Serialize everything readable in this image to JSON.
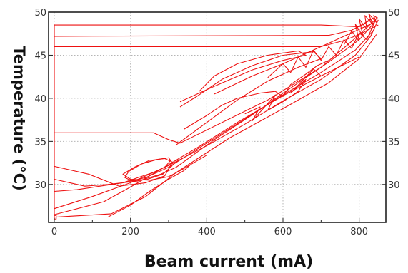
{
  "chart_data": {
    "type": "line",
    "title": "",
    "xlabel": "Beam current (mA)",
    "ylabel": "Temperature (°C)",
    "xlim": [
      -15,
      870
    ],
    "ylim": [
      25.6,
      50
    ],
    "xticks": [
      "0",
      "200",
      "400",
      "600",
      "800"
    ],
    "yticks_left": [
      "30",
      "35",
      "40",
      "45",
      "50"
    ],
    "yticks_right": [
      "30",
      "35",
      "40",
      "45",
      "50"
    ],
    "grid": true,
    "legend": "none",
    "series": [
      {
        "color": "#ee1111",
        "x": [
          0,
          700,
          760,
          800,
          830,
          850
        ],
        "y": [
          46,
          46,
          46.7,
          47.4,
          48.1,
          48.5
        ]
      },
      {
        "color": "#ee1111",
        "x": [
          0,
          0,
          5,
          5,
          0,
          0,
          700,
          800,
          840
        ],
        "y": [
          47.8,
          26.4,
          26.4,
          26,
          26,
          48.5,
          48.5,
          48.3,
          49.4
        ]
      },
      {
        "color": "#ee1111",
        "x": [
          0,
          720,
          780,
          810,
          830
        ],
        "y": [
          47.2,
          47.3,
          47.9,
          48.6,
          49.2
        ]
      },
      {
        "color": "#ee1111",
        "x": [
          0,
          260,
          300,
          330,
          560,
          700,
          780,
          820,
          848
        ],
        "y": [
          36,
          36,
          35.2,
          34.8,
          39.8,
          43.6,
          46.6,
          48.2,
          49.4
        ]
      },
      {
        "color": "#ee1111",
        "x": [
          0,
          150,
          240,
          320,
          460,
          600,
          720,
          800,
          845
        ],
        "y": [
          26.2,
          26.6,
          28.6,
          31.4,
          35.4,
          38.8,
          41.8,
          44.6,
          47.4
        ]
      },
      {
        "color": "#ee1111",
        "x": [
          0,
          130,
          200,
          300,
          380,
          480,
          600,
          700,
          800
        ],
        "y": [
          26.5,
          28,
          29.7,
          32.3,
          34.4,
          37.2,
          40.3,
          42.6,
          44.8
        ]
      },
      {
        "color": "#ee1111",
        "x": [
          0,
          100,
          200,
          300,
          400,
          500,
          600,
          700,
          790,
          830,
          850
        ],
        "y": [
          27.2,
          28.6,
          30.2,
          32.2,
          34.5,
          37,
          39.7,
          42.2,
          45,
          47.2,
          49.1
        ]
      },
      {
        "color": "#ee1111",
        "x": [
          0,
          60,
          120,
          180,
          240,
          300,
          400,
          500,
          600,
          700,
          790,
          840
        ],
        "y": [
          29.2,
          29.4,
          29.8,
          30.2,
          30.8,
          32,
          34.8,
          37.6,
          40.4,
          43,
          45.6,
          48
        ]
      },
      {
        "color": "#ee1111",
        "x": [
          0,
          80,
          140,
          220,
          280,
          320,
          420,
          520,
          620,
          720,
          800,
          840
        ],
        "y": [
          30.6,
          29.8,
          30,
          30.4,
          31.2,
          32,
          35.2,
          38.1,
          41.2,
          44.2,
          46.8,
          48.8
        ]
      },
      {
        "color": "#ee1111",
        "x": [
          0,
          90,
          170,
          240,
          290,
          310,
          290,
          250,
          210,
          180,
          200,
          250,
          300,
          330,
          400
        ],
        "y": [
          32.1,
          31.2,
          29.8,
          30.2,
          31,
          32.6,
          33,
          32.8,
          32,
          31.2,
          30.6,
          30.5,
          30.9,
          31.6,
          33.4
        ]
      },
      {
        "color": "#ee1111",
        "x": [
          180,
          220,
          260,
          290,
          305,
          300,
          270,
          230,
          195,
          185,
          205,
          245,
          285,
          310
        ],
        "y": [
          30.2,
          30.8,
          31.4,
          32,
          32.8,
          33.1,
          32.9,
          32.4,
          31.5,
          30.8,
          30.4,
          30.6,
          31.2,
          32.2
        ]
      },
      {
        "color": "#ee1111",
        "x": [
          320,
          400,
          480,
          560,
          640,
          700,
          680,
          600,
          520,
          440,
          380,
          330
        ],
        "y": [
          34.6,
          37.2,
          39.8,
          42,
          43.6,
          44.6,
          45.4,
          45,
          43.8,
          42.2,
          40.4,
          39
        ]
      },
      {
        "color": "#ee1111",
        "x": [
          330,
          420,
          520,
          600,
          660,
          640,
          560,
          480,
          420,
          380
        ],
        "y": [
          39.6,
          41.4,
          43.3,
          44.4,
          45,
          45.5,
          45,
          44,
          42.6,
          40.8
        ]
      },
      {
        "color": "#ee1111",
        "x": [
          420,
          520,
          600,
          660,
          700,
          740,
          780,
          820,
          840,
          845
        ],
        "y": [
          40.5,
          42.6,
          44,
          45.2,
          46,
          46.8,
          47.6,
          48.4,
          48.8,
          49.3
        ]
      },
      {
        "color": "#ee1111",
        "x": [
          560,
          600,
          620,
          640,
          660,
          680,
          700,
          720,
          740,
          760,
          780,
          800,
          820,
          840
        ],
        "y": [
          42.4,
          44,
          43,
          44.8,
          43.6,
          45.6,
          44.4,
          46,
          45,
          46.8,
          45.8,
          47.6,
          46.8,
          48.8
        ]
      },
      {
        "color": "#ee1111",
        "x": [
          760,
          780,
          800,
          790,
          810,
          800,
          820,
          815,
          835,
          825,
          845,
          838,
          848
        ],
        "y": [
          46.2,
          47.8,
          46.6,
          48.6,
          47.2,
          49.2,
          48,
          49.6,
          48.6,
          49.8,
          48.8,
          49.6,
          49.3
        ]
      },
      {
        "color": "#ee1111",
        "x": [
          500,
          540,
          520,
          580,
          560,
          600,
          640,
          660,
          620,
          680,
          700
        ],
        "y": [
          38.2,
          39,
          37.4,
          40.4,
          38.6,
          39.6,
          40.8,
          42.2,
          40.6,
          43.4,
          42.6
        ]
      },
      {
        "color": "#ee1111",
        "x": [
          340,
          400,
          440,
          480,
          540,
          580,
          600,
          620,
          660,
          690,
          720
        ],
        "y": [
          36.4,
          38,
          39.2,
          40,
          40.6,
          40.8,
          40.2,
          41.6,
          42.8,
          43.8,
          44.4
        ]
      },
      {
        "color": "#ee1111",
        "x": [
          140,
          200,
          250,
          300,
          340,
          360
        ],
        "y": [
          26.2,
          27.6,
          29.2,
          30.6,
          31.6,
          32.4
        ]
      }
    ]
  }
}
